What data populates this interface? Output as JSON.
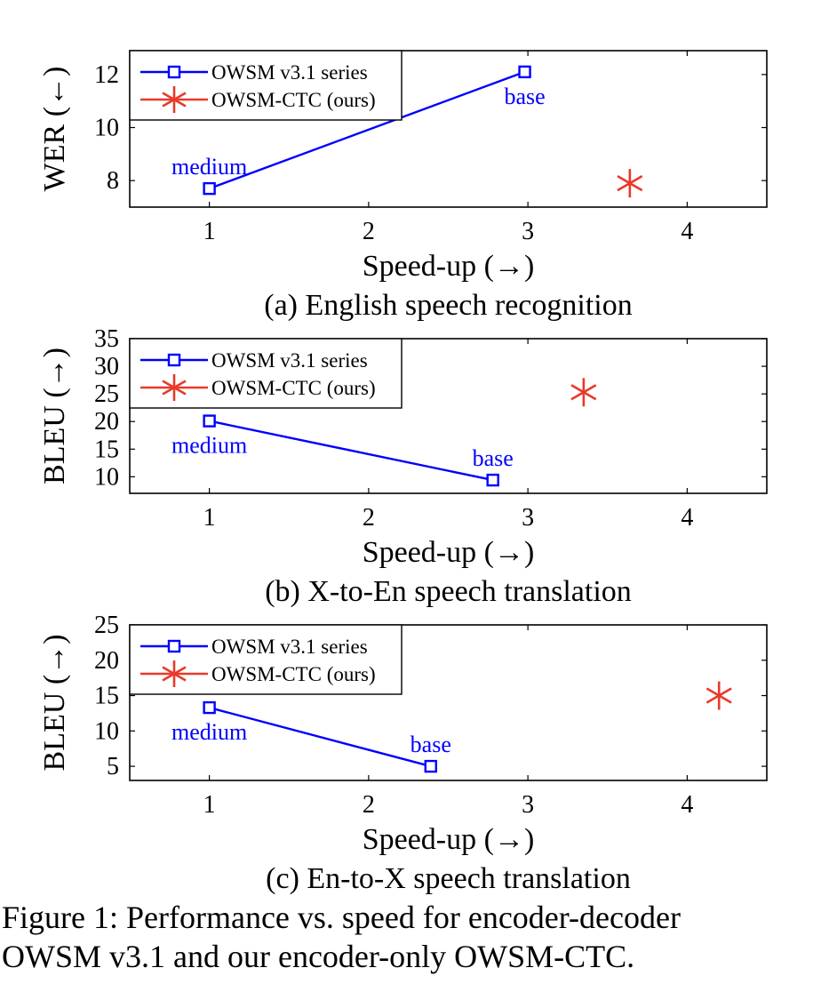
{
  "chart_data": [
    {
      "type": "line",
      "subcaption": "(a) English speech recognition",
      "xlabel": "Speed-up (→)",
      "ylabel": "WER (←)",
      "xlim": [
        0.5,
        4.5
      ],
      "ylim": [
        7,
        12.9
      ],
      "xticks": [
        1,
        2,
        3,
        4
      ],
      "yticks": [
        8,
        10,
        12
      ],
      "grid": false,
      "legend": "top-left",
      "series": [
        {
          "name": "OWSM v3.1 series",
          "color": "#0000ff",
          "marker": "square",
          "x": [
            1,
            2.98
          ],
          "y": [
            7.7,
            12.1
          ],
          "point_labels": [
            {
              "text": "medium",
              "pos": "above"
            },
            {
              "text": "base",
              "pos": "below"
            }
          ]
        },
        {
          "name": "OWSM-CTC (ours)",
          "color": "#e8392b",
          "marker": "asterisk",
          "x": [
            3.64
          ],
          "y": [
            7.9
          ],
          "point_labels": []
        }
      ]
    },
    {
      "type": "line",
      "subcaption": "(b) X-to-En speech translation",
      "xlabel": "Speed-up (→)",
      "ylabel": "BLEU (→)",
      "xlim": [
        0.5,
        4.5
      ],
      "ylim": [
        7,
        35
      ],
      "xticks": [
        1,
        2,
        3,
        4
      ],
      "yticks": [
        10,
        15,
        20,
        25,
        30,
        35
      ],
      "grid": false,
      "legend": "top-left",
      "series": [
        {
          "name": "OWSM v3.1 series",
          "color": "#0000ff",
          "marker": "square",
          "x": [
            1,
            2.78
          ],
          "y": [
            20.1,
            9.4
          ],
          "point_labels": [
            {
              "text": "medium",
              "pos": "below"
            },
            {
              "text": "base",
              "pos": "above"
            }
          ]
        },
        {
          "name": "OWSM-CTC (ours)",
          "color": "#e8392b",
          "marker": "asterisk",
          "x": [
            3.35
          ],
          "y": [
            25.3
          ],
          "point_labels": []
        }
      ]
    },
    {
      "type": "line",
      "subcaption": "(c) En-to-X speech translation",
      "xlabel": "Speed-up (→)",
      "ylabel": "BLEU (→)",
      "xlim": [
        0.5,
        4.5
      ],
      "ylim": [
        3,
        25
      ],
      "xticks": [
        1,
        2,
        3,
        4
      ],
      "yticks": [
        5,
        10,
        15,
        20,
        25
      ],
      "grid": false,
      "legend": "top-left",
      "series": [
        {
          "name": "OWSM v3.1 series",
          "color": "#0000ff",
          "marker": "square",
          "x": [
            1,
            2.39
          ],
          "y": [
            13.3,
            5
          ],
          "point_labels": [
            {
              "text": "medium",
              "pos": "below"
            },
            {
              "text": "base",
              "pos": "above"
            }
          ]
        },
        {
          "name": "OWSM-CTC (ours)",
          "color": "#e8392b",
          "marker": "asterisk",
          "x": [
            4.2
          ],
          "y": [
            15
          ],
          "point_labels": []
        }
      ]
    }
  ],
  "caption": {
    "line1": "Figure 1: Performance vs. speed for encoder-decoder",
    "line2": "OWSM v3.1 and our encoder-only OWSM-CTC."
  }
}
